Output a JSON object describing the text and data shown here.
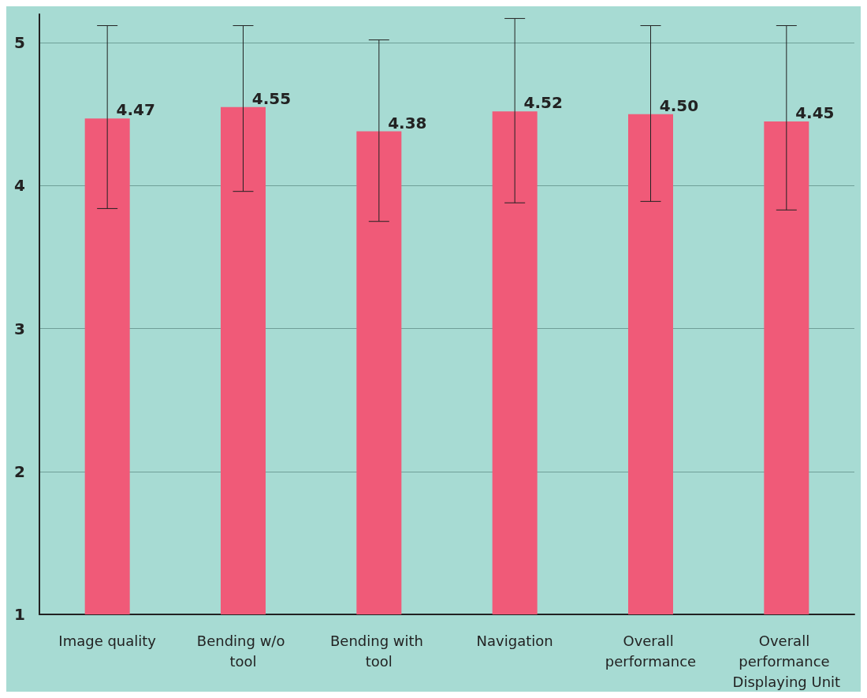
{
  "chart_data": {
    "type": "bar",
    "categories": [
      "Image quality",
      "Bending w/o tool",
      "Bending with tool",
      "Navigation",
      "Overall performance",
      "Overall performance Displaying Unit"
    ],
    "values": [
      4.47,
      4.55,
      4.38,
      4.52,
      4.5,
      4.45
    ],
    "errors": [
      [
        3.84,
        5.12
      ],
      [
        3.96,
        5.12
      ],
      [
        3.75,
        5.02
      ],
      [
        3.88,
        5.17
      ],
      [
        3.89,
        5.12
      ],
      [
        3.83,
        5.12
      ]
    ],
    "color": "#f05a78",
    "ylim": [
      1,
      5.2
    ],
    "yticks": [
      1,
      2,
      3,
      4,
      5
    ],
    "value_labels": [
      "4.47",
      "4.55",
      "4.38",
      "4.52",
      "4.50",
      "4.45"
    ],
    "grid": "y"
  }
}
